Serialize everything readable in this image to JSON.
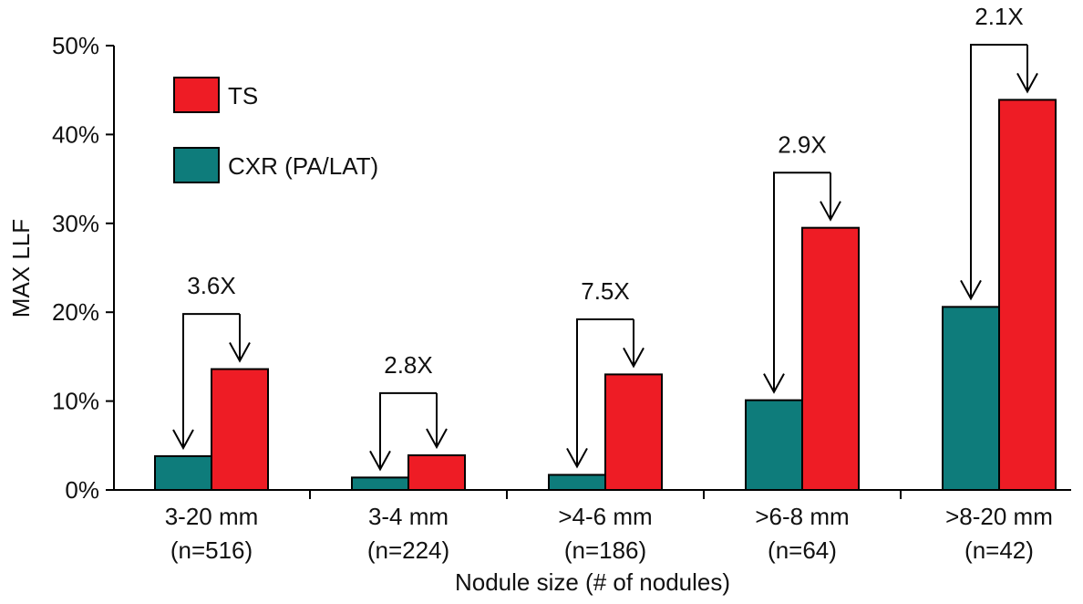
{
  "chart_data": {
    "type": "bar",
    "ylabel": "MAX LLF",
    "xlabel": "Nodule size (# of nodules)",
    "ylim": [
      0,
      50
    ],
    "y_ticks": [
      "0%",
      "10%",
      "20%",
      "30%",
      "40%",
      "50%"
    ],
    "y_tick_values": [
      0,
      10,
      20,
      30,
      40,
      50
    ],
    "categories": [
      {
        "line1": "3-20 mm",
        "line2": "(n=516)"
      },
      {
        "line1": "3-4 mm",
        "line2": "(n=224)"
      },
      {
        "line1": ">4-6 mm",
        "line2": "(n=186)"
      },
      {
        "line1": ">6-8 mm",
        "line2": "(n=64)"
      },
      {
        "line1": ">8-20 mm",
        "line2": "(n=42)"
      }
    ],
    "series": [
      {
        "name": "CXR (PA/LAT)",
        "color": "#0e7c7b",
        "values": [
          3.8,
          1.4,
          1.7,
          10.1,
          20.6
        ]
      },
      {
        "name": "TS",
        "color": "#ee1c25",
        "values": [
          13.6,
          3.9,
          13.0,
          29.5,
          43.9
        ]
      }
    ],
    "annotations": [
      "3.6X",
      "2.8X",
      "7.5X",
      "2.9X",
      "2.1X"
    ],
    "legend": {
      "placement": "top-left",
      "entries": [
        {
          "label": "TS",
          "color": "#ee1c25"
        },
        {
          "label": "CXR (PA/LAT)",
          "color": "#0e7c7b"
        }
      ]
    },
    "grid": false
  }
}
